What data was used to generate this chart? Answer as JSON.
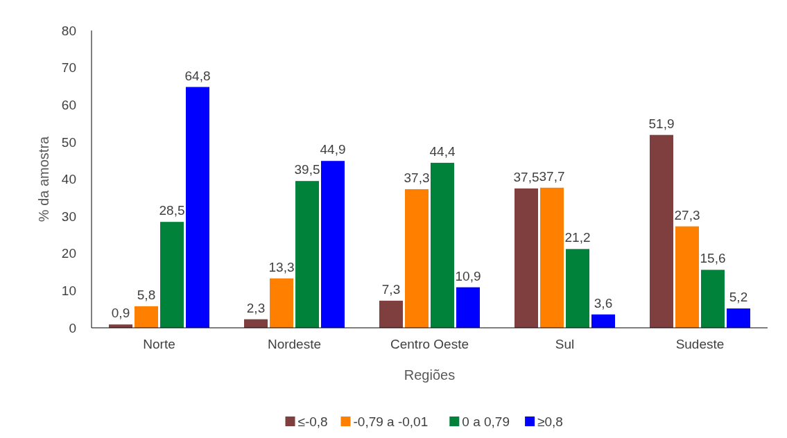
{
  "chart_data": {
    "type": "bar",
    "xlabel": "Regiões",
    "ylabel": "% da amostra",
    "categories": [
      "Norte",
      "Nordeste",
      "Centro Oeste",
      "Sul",
      "Sudeste"
    ],
    "series": [
      {
        "name": "≤-0,8",
        "color": "#7f3f3f",
        "values": [
          0.9,
          2.3,
          7.3,
          37.5,
          51.9
        ],
        "value_labels": [
          "0,9",
          "2,3",
          "7,3",
          "37,5",
          "51,9"
        ]
      },
      {
        "name": "-0,79 a -0,01",
        "color": "#ff7f00",
        "values": [
          5.8,
          13.3,
          37.3,
          37.7,
          27.3
        ],
        "value_labels": [
          "5,8",
          "13,3",
          "37,3",
          "37,7",
          "27,3"
        ]
      },
      {
        "name": "0 a 0,79",
        "color": "#00823b",
        "values": [
          28.5,
          39.5,
          44.4,
          21.2,
          15.6
        ],
        "value_labels": [
          "28,5",
          "39,5",
          "44,4",
          "21,2",
          "15,6"
        ]
      },
      {
        "name": "≥0,8",
        "color": "#0000ff",
        "values": [
          64.8,
          44.9,
          10.9,
          3.6,
          5.2
        ],
        "value_labels": [
          "64,8",
          "44,9",
          "10,9",
          "3,6",
          "5,2"
        ]
      }
    ],
    "ylim": [
      0,
      80
    ],
    "yticks": [
      0,
      10,
      20,
      30,
      40,
      50,
      60,
      70,
      80
    ],
    "grid": false,
    "legend": "bottom"
  }
}
